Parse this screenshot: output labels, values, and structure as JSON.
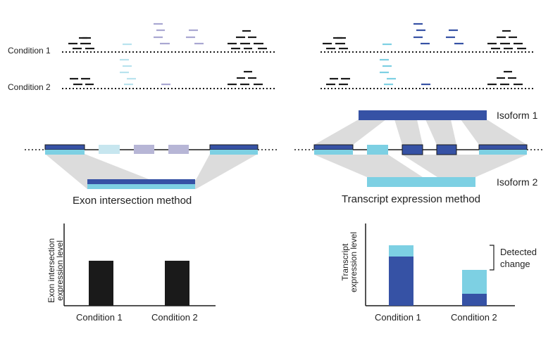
{
  "conditions": {
    "top_left": [
      "Condition 1",
      "Condition 2"
    ]
  },
  "isoforms": [
    "Isoform 1",
    "Isoform 2"
  ],
  "methods": {
    "left": "Exon intersection method",
    "right": "Transcript expression method"
  },
  "charts": {
    "left": {
      "ylabel_line1": "Exon intersection",
      "ylabel_line2": "expression level",
      "categories": [
        "Condition 1",
        "Condition 2"
      ]
    },
    "right": {
      "ylabel_line1": "Transcript",
      "ylabel_line2": "expression level",
      "categories": [
        "Condition 1",
        "Condition 2"
      ],
      "annotation_line1": "Detected",
      "annotation_line2": "change"
    }
  },
  "colors": {
    "dark_blue": "#3652a5",
    "light_blue": "#7dd0e3",
    "black": "#1a1a1a",
    "grey_band": "#dcdcdc",
    "faded_blue": "#c7e6ef",
    "faded_purple": "#b7b6d6"
  }
}
